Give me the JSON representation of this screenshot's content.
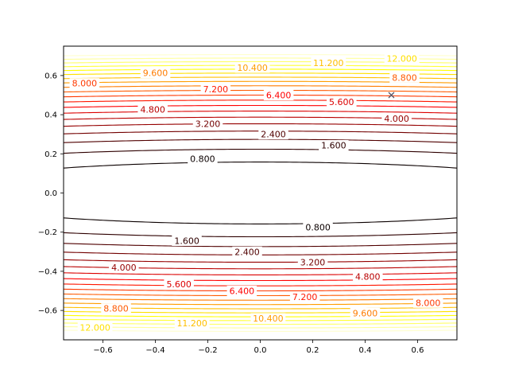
{
  "chart_data": {
    "type": "contour",
    "title": "",
    "xlabel": "",
    "ylabel": "",
    "xlim": [
      -0.75,
      0.75
    ],
    "ylim": [
      -0.75,
      0.75
    ],
    "x_ticks": [
      "−0.6",
      "−0.4",
      "−0.2",
      "0.0",
      "0.2",
      "0.4",
      "0.6"
    ],
    "x_tick_values": [
      -0.6,
      -0.4,
      -0.2,
      0.0,
      0.2,
      0.4,
      0.6
    ],
    "y_ticks": [
      "−0.6",
      "−0.4",
      "−0.2",
      "0.0",
      "0.2",
      "0.4",
      "0.6"
    ],
    "y_tick_values": [
      -0.6,
      -0.4,
      -0.2,
      0.0,
      0.2,
      0.4,
      0.6
    ],
    "function": "z = 0.5*x^2 + 32*y^2",
    "levels": [
      0.8,
      1.6,
      2.4,
      3.2,
      4.0,
      4.8,
      5.6,
      6.4,
      7.2,
      8.0,
      8.8,
      9.6,
      10.4,
      11.2,
      12.0,
      12.8,
      13.6,
      14.4,
      15.2,
      16.0,
      16.8
    ],
    "colormap": "hot",
    "grid": false,
    "marker": {
      "x": 0.5,
      "y": 0.5,
      "symbol": "x",
      "color": "#555566"
    },
    "contour_labels": [
      {
        "text": "0.800",
        "x": -0.22,
        "y": 0.175
      },
      {
        "text": "0.800",
        "x": 0.22,
        "y": -0.175
      },
      {
        "text": "1.600",
        "x": -0.28,
        "y": -0.244
      },
      {
        "text": "1.600",
        "x": 0.28,
        "y": 0.244
      },
      {
        "text": "2.400",
        "x": -0.05,
        "y": -0.3
      },
      {
        "text": "2.400",
        "x": 0.05,
        "y": 0.3
      },
      {
        "text": "3.200",
        "x": 0.2,
        "y": -0.353
      },
      {
        "text": "3.200",
        "x": -0.2,
        "y": 0.353
      },
      {
        "text": "4.000",
        "x": -0.52,
        "y": -0.38
      },
      {
        "text": "4.000",
        "x": 0.52,
        "y": 0.38
      },
      {
        "text": "4.800",
        "x": 0.41,
        "y": -0.427
      },
      {
        "text": "4.800",
        "x": -0.41,
        "y": 0.427
      },
      {
        "text": "5.600",
        "x": -0.31,
        "y": -0.465
      },
      {
        "text": "5.600",
        "x": 0.31,
        "y": 0.465
      },
      {
        "text": "6.400",
        "x": -0.07,
        "y": -0.5
      },
      {
        "text": "6.400",
        "x": 0.07,
        "y": 0.5
      },
      {
        "text": "7.200",
        "x": 0.17,
        "y": -0.53
      },
      {
        "text": "7.200",
        "x": -0.17,
        "y": 0.53
      },
      {
        "text": "8.000",
        "x": -0.67,
        "y": 0.56
      },
      {
        "text": "8.000",
        "x": 0.64,
        "y": -0.56
      },
      {
        "text": "8.800",
        "x": -0.55,
        "y": -0.59
      },
      {
        "text": "8.800",
        "x": 0.55,
        "y": 0.59
      },
      {
        "text": "9.600",
        "x": -0.4,
        "y": 0.614
      },
      {
        "text": "9.600",
        "x": 0.4,
        "y": -0.614
      },
      {
        "text": "10.400",
        "x": 0.03,
        "y": -0.64
      },
      {
        "text": "10.400",
        "x": -0.03,
        "y": 0.64
      },
      {
        "text": "11.200",
        "x": -0.26,
        "y": -0.665
      },
      {
        "text": "11.200",
        "x": 0.26,
        "y": 0.665
      },
      {
        "text": "12.000",
        "x": -0.63,
        "y": -0.688
      },
      {
        "text": "12.000",
        "x": 0.54,
        "y": 0.688
      }
    ]
  }
}
